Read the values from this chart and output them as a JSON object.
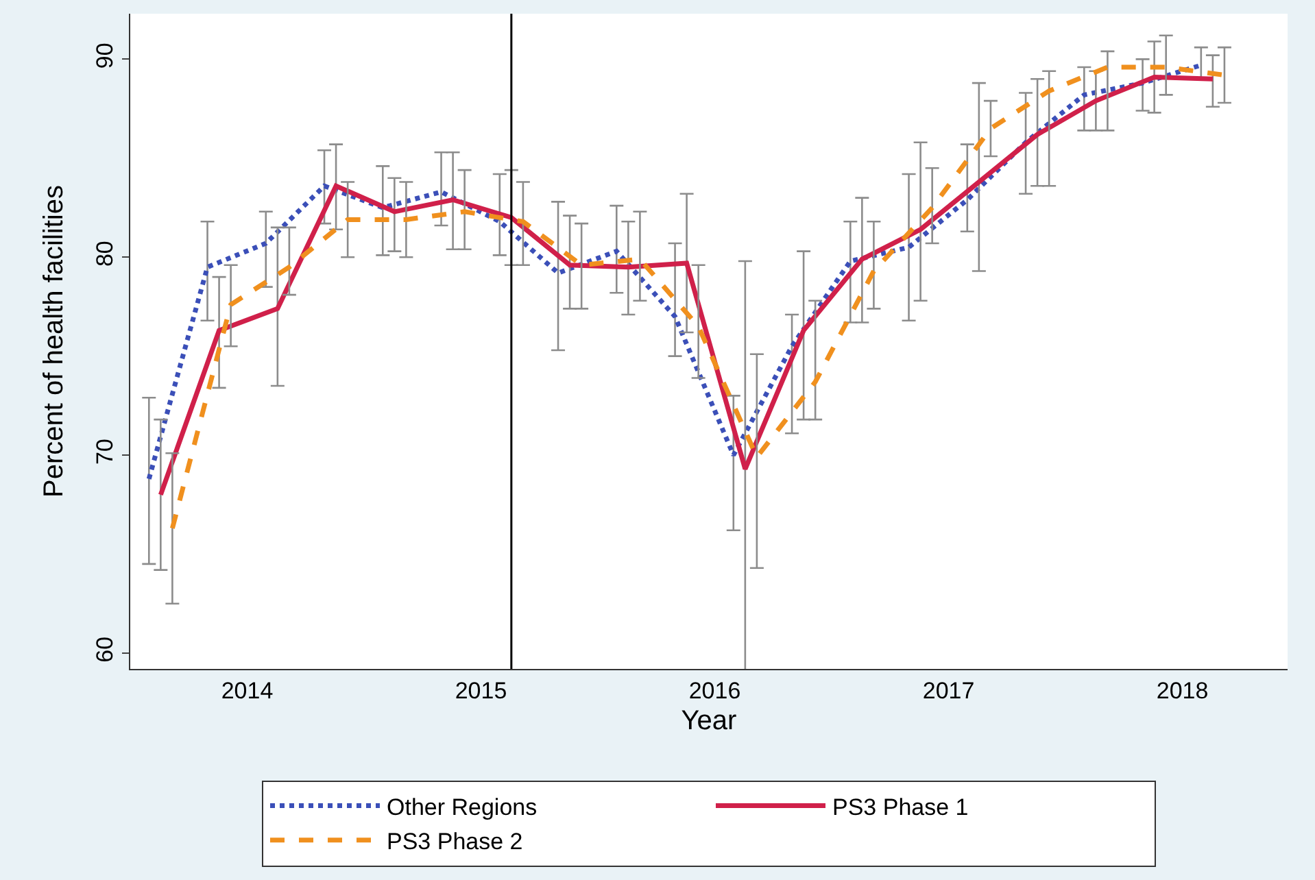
{
  "chart_data": {
    "type": "line",
    "xlabel": "Year",
    "ylabel": "Percent of health facilities",
    "xlim": [
      2013.92,
      2018.87
    ],
    "ylim": [
      59.2,
      92.3
    ],
    "yticks": [
      60,
      70,
      80,
      90
    ],
    "xticks": [
      {
        "value": 2014.42,
        "label": "2014"
      },
      {
        "value": 2015.42,
        "label": "2015"
      },
      {
        "value": 2016.42,
        "label": "2016"
      },
      {
        "value": 2017.42,
        "label": "2017"
      },
      {
        "value": 2018.42,
        "label": "2018"
      }
    ],
    "legend": "bottom",
    "marker": "none",
    "ref_lines": [
      {
        "axis": "x",
        "value": 2015.55,
        "color": "#000000",
        "line_style": "solid"
      }
    ],
    "series": [
      {
        "name": "Other Regions",
        "color": "#3b4fb8",
        "line_style": "dotted",
        "x": [
          2014.0,
          2014.25,
          2014.5,
          2014.75,
          2015.0,
          2015.25,
          2015.5,
          2015.75,
          2016.0,
          2016.25,
          2016.5,
          2016.75,
          2017.0,
          2017.25,
          2017.5,
          2017.75,
          2018.0,
          2018.25,
          2018.5
        ],
        "values": [
          68.8,
          79.5,
          80.7,
          83.6,
          82.5,
          83.3,
          81.8,
          79.2,
          80.3,
          77.0,
          70.0,
          75.5,
          79.8,
          80.5,
          82.9,
          85.8,
          88.2,
          88.8,
          89.7
        ],
        "errors": [
          [
            64.5,
            72.9
          ],
          [
            76.8,
            81.8
          ],
          [
            78.5,
            82.3
          ],
          [
            81.7,
            85.4
          ],
          [
            80.1,
            84.6
          ],
          [
            81.6,
            85.3
          ],
          [
            80.1,
            84.2
          ],
          [
            75.3,
            82.8
          ],
          [
            78.2,
            82.6
          ],
          [
            75.0,
            80.7
          ],
          [
            66.2,
            73.0
          ],
          [
            71.1,
            77.1
          ],
          [
            76.7,
            81.8
          ],
          [
            76.8,
            84.2
          ],
          [
            81.3,
            85.7
          ],
          [
            83.2,
            88.3
          ],
          [
            86.4,
            89.6
          ],
          [
            87.4,
            90.0
          ],
          [
            89.0,
            90.6
          ]
        ]
      },
      {
        "name": "PS3 Phase 1",
        "color": "#d0204a",
        "line_style": "solid",
        "x": [
          2014.05,
          2014.3,
          2014.55,
          2014.8,
          2015.05,
          2015.3,
          2015.55,
          2015.8,
          2016.05,
          2016.3,
          2016.55,
          2016.8,
          2017.05,
          2017.3,
          2017.55,
          2017.8,
          2018.05,
          2018.3,
          2018.55
        ],
        "values": [
          68.0,
          76.3,
          77.4,
          83.6,
          82.3,
          82.9,
          82.0,
          79.6,
          79.5,
          79.7,
          69.3,
          76.3,
          79.9,
          81.4,
          83.8,
          86.2,
          87.9,
          89.1,
          89.0
        ],
        "errors": [
          [
            64.2,
            71.8
          ],
          [
            73.4,
            79.0
          ],
          [
            73.5,
            81.5
          ],
          [
            81.4,
            85.7
          ],
          [
            80.3,
            84.0
          ],
          [
            80.4,
            85.3
          ],
          [
            79.6,
            84.4
          ],
          [
            77.4,
            82.1
          ],
          [
            77.1,
            81.8
          ],
          [
            76.2,
            83.2
          ],
          [
            59.0,
            79.8
          ],
          [
            71.8,
            80.3
          ],
          [
            76.7,
            83.0
          ],
          [
            77.8,
            85.8
          ],
          [
            79.3,
            88.8
          ],
          [
            83.6,
            89.0
          ],
          [
            86.4,
            89.4
          ],
          [
            87.3,
            90.9
          ],
          [
            87.6,
            90.2
          ]
        ]
      },
      {
        "name": "PS3 Phase 2",
        "color": "#f0901e",
        "line_style": "dashed",
        "x": [
          2014.1,
          2014.35,
          2014.6,
          2014.85,
          2015.1,
          2015.35,
          2015.6,
          2015.85,
          2016.1,
          2016.35,
          2016.6,
          2016.85,
          2017.1,
          2017.35,
          2017.6,
          2017.85,
          2018.1,
          2018.35,
          2018.6
        ],
        "values": [
          66.3,
          77.6,
          79.5,
          81.9,
          81.9,
          82.3,
          81.8,
          79.6,
          79.9,
          76.5,
          69.9,
          73.7,
          79.3,
          82.5,
          86.5,
          88.4,
          89.6,
          89.6,
          89.2
        ],
        "errors": [
          [
            62.5,
            70.1
          ],
          [
            75.5,
            79.6
          ],
          [
            78.1,
            81.5
          ],
          [
            80.0,
            83.8
          ],
          [
            80.0,
            83.8
          ],
          [
            80.4,
            84.4
          ],
          [
            79.6,
            83.8
          ],
          [
            77.4,
            81.7
          ],
          [
            77.8,
            82.3
          ],
          [
            73.9,
            79.6
          ],
          [
            64.3,
            75.1
          ],
          [
            71.8,
            77.8
          ],
          [
            77.4,
            81.8
          ],
          [
            80.7,
            84.5
          ],
          [
            85.1,
            87.9
          ],
          [
            83.6,
            89.4
          ],
          [
            86.4,
            90.4
          ],
          [
            88.2,
            91.2
          ],
          [
            87.8,
            90.6
          ]
        ]
      }
    ]
  }
}
